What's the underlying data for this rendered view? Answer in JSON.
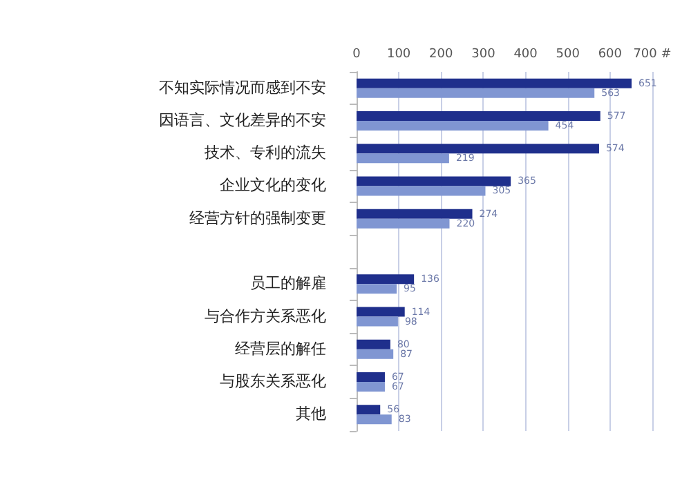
{
  "chart_data": {
    "type": "bar",
    "orientation": "horizontal",
    "categories": [
      "不知实际情况而感到不安",
      "因语言、文化差异的不安",
      "技术、专利的流失",
      "企业文化的变化",
      "经营方针的强制变更",
      null,
      "员工的解雇",
      "与合作方关系恶化",
      "经营层的解任",
      "与股东关系恶化",
      "其他"
    ],
    "series": [
      {
        "color": "#1f2f8c",
        "values": [
          651,
          577,
          574,
          365,
          274,
          null,
          136,
          114,
          80,
          67,
          56
        ]
      },
      {
        "color": "#8096d2",
        "values": [
          563,
          454,
          219,
          305,
          220,
          null,
          95,
          98,
          87,
          67,
          83
        ]
      }
    ],
    "xlim": [
      0,
      700
    ],
    "xticks": [
      0,
      100,
      200,
      300,
      400,
      500,
      600,
      {
        "value": 700,
        "label": "700 #"
      }
    ],
    "grid": "x",
    "data_labels": true
  }
}
